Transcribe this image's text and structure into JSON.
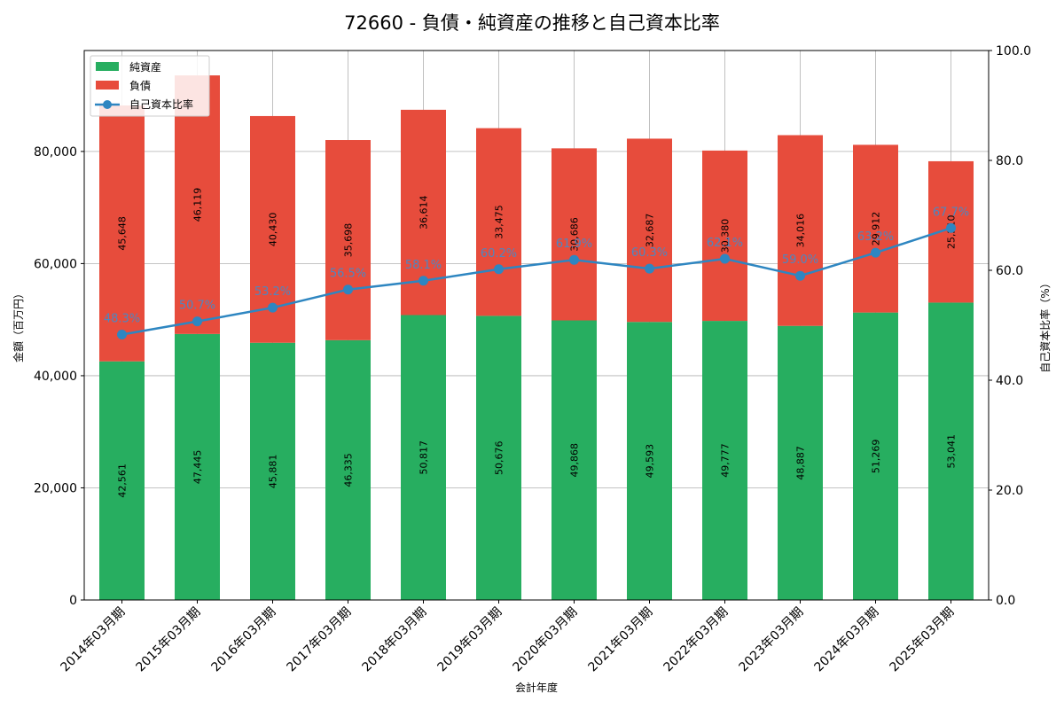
{
  "chart_data": {
    "type": "bar",
    "stacked": true,
    "title": "72660 - 負債・純資産の推移と自己資本比率",
    "xlabel": "会計年度",
    "ylabel": "金額（百万円）",
    "y2label": "自己資本比率（%）",
    "ylim": [
      0,
      98000
    ],
    "y2lim": [
      0,
      100
    ],
    "yticks": [
      "0",
      "20,000",
      "40,000",
      "60,000",
      "80,000"
    ],
    "y2ticks": [
      "0.0",
      "20.0",
      "40.0",
      "60.0",
      "80.0",
      "100.0"
    ],
    "categories": [
      "2014年03月期",
      "2015年03月期",
      "2016年03月期",
      "2017年03月期",
      "2018年03月期",
      "2019年03月期",
      "2020年03月期",
      "2021年03月期",
      "2022年03月期",
      "2023年03月期",
      "2024年03月期",
      "2025年03月期"
    ],
    "series": [
      {
        "name": "純資産",
        "color": "#27ae60",
        "values": [
          42561,
          47445,
          45881,
          46335,
          50817,
          50676,
          49868,
          49593,
          49777,
          48887,
          51269,
          53041
        ],
        "labels": [
          "42,561",
          "47,445",
          "45,881",
          "46,335",
          "50,817",
          "50,676",
          "49,868",
          "49,593",
          "49,777",
          "48,887",
          "51,269",
          "53,041"
        ]
      },
      {
        "name": "負債",
        "color": "#e74c3c",
        "values": [
          45648,
          46119,
          40430,
          35698,
          36614,
          33475,
          30686,
          32687,
          30380,
          34016,
          29912,
          25210
        ],
        "labels": [
          "45,648",
          "46,119",
          "40,430",
          "35,698",
          "36,614",
          "33,475",
          "30,686",
          "32,687",
          "30,380",
          "34,016",
          "29,912",
          "25,210"
        ]
      }
    ],
    "line": {
      "name": "自己資本比率",
      "color": "#2e86c1",
      "values": [
        48.3,
        50.7,
        53.2,
        56.5,
        58.1,
        60.2,
        61.9,
        60.3,
        62.1,
        59.0,
        63.2,
        67.7
      ],
      "labels": [
        "48.3%",
        "50.7%",
        "53.2%",
        "56.5%",
        "58.1%",
        "60.2%",
        "61.9%",
        "60.3%",
        "62.1%",
        "59.0%",
        "63.2%",
        "67.7%"
      ]
    },
    "legend": "top-left",
    "grid": true
  }
}
